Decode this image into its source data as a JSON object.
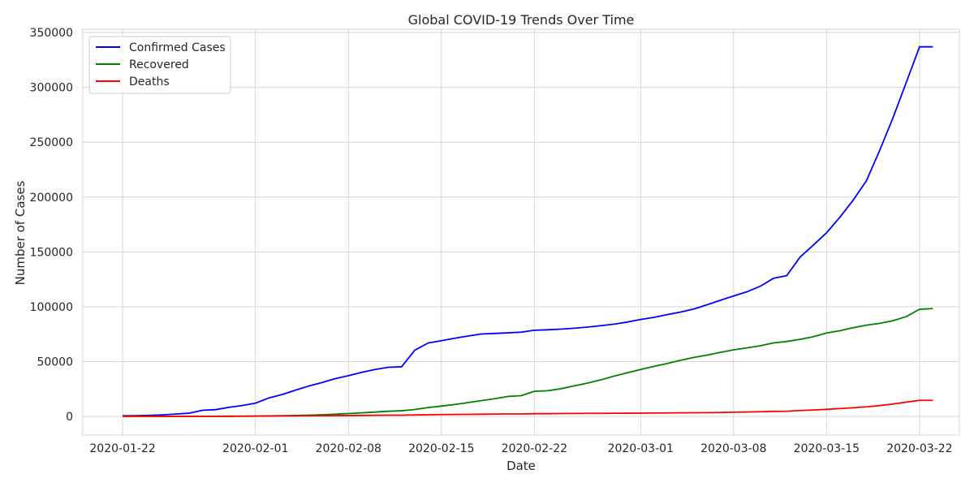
{
  "chart_data": {
    "type": "line",
    "title": "Global COVID-19 Trends Over Time",
    "xlabel": "Date",
    "ylabel": "Number of Cases",
    "x_start_date": "2020-01-22",
    "x_end_date": "2020-03-23",
    "xlim": [
      "2020-01-19",
      "2020-03-25"
    ],
    "ylim": [
      -17000,
      353000
    ],
    "x_ticks": [
      "2020-01-22",
      "2020-02-01",
      "2020-02-08",
      "2020-02-15",
      "2020-02-22",
      "2020-03-01",
      "2020-03-08",
      "2020-03-15",
      "2020-03-22"
    ],
    "y_ticks": [
      0,
      50000,
      100000,
      150000,
      200000,
      250000,
      300000,
      350000
    ],
    "grid": true,
    "legend_position": "top-left",
    "x": [
      "2020-01-22",
      "2020-01-23",
      "2020-01-24",
      "2020-01-25",
      "2020-01-26",
      "2020-01-27",
      "2020-01-28",
      "2020-01-29",
      "2020-01-30",
      "2020-01-31",
      "2020-02-01",
      "2020-02-02",
      "2020-02-03",
      "2020-02-04",
      "2020-02-05",
      "2020-02-06",
      "2020-02-07",
      "2020-02-08",
      "2020-02-09",
      "2020-02-10",
      "2020-02-11",
      "2020-02-12",
      "2020-02-13",
      "2020-02-14",
      "2020-02-15",
      "2020-02-16",
      "2020-02-17",
      "2020-02-18",
      "2020-02-19",
      "2020-02-20",
      "2020-02-21",
      "2020-02-22",
      "2020-02-23",
      "2020-02-24",
      "2020-02-25",
      "2020-02-26",
      "2020-02-27",
      "2020-02-28",
      "2020-02-29",
      "2020-03-01",
      "2020-03-02",
      "2020-03-03",
      "2020-03-04",
      "2020-03-05",
      "2020-03-06",
      "2020-03-07",
      "2020-03-08",
      "2020-03-09",
      "2020-03-10",
      "2020-03-11",
      "2020-03-12",
      "2020-03-13",
      "2020-03-14",
      "2020-03-15",
      "2020-03-16",
      "2020-03-17",
      "2020-03-18",
      "2020-03-19",
      "2020-03-20",
      "2020-03-21",
      "2020-03-22",
      "2020-03-23"
    ],
    "series": [
      {
        "name": "Confirmed Cases",
        "color": "#0000ff",
        "values": [
          555,
          654,
          941,
          1434,
          2118,
          2927,
          5578,
          6166,
          8234,
          9927,
          12038,
          16787,
          19881,
          23892,
          27635,
          30817,
          34391,
          37120,
          40150,
          42762,
          44802,
          45221,
          60368,
          66885,
          69030,
          71224,
          73258,
          75136,
          75639,
          76197,
          76819,
          78572,
          78958,
          79561,
          80406,
          81388,
          82746,
          84112,
          86011,
          88369,
          90306,
          92840,
          95120,
          97886,
          101801,
          105847,
          109821,
          113590,
          118620,
          125875,
          128343,
          145205,
          156101,
          167454,
          181574,
          197102,
          214821,
          242570,
          272208,
          304507,
          336953,
          336953
        ]
      },
      {
        "name": "Recovered",
        "color": "#008000",
        "values": [
          28,
          30,
          36,
          39,
          52,
          61,
          107,
          126,
          143,
          222,
          284,
          472,
          623,
          852,
          1124,
          1487,
          2011,
          2616,
          3244,
          3946,
          4683,
          5150,
          6295,
          8058,
          9395,
          10865,
          12583,
          14352,
          16121,
          18177,
          18890,
          22886,
          23394,
          25227,
          27905,
          30384,
          33277,
          36711,
          39782,
          42716,
          45602,
          48228,
          51170,
          53796,
          55865,
          58358,
          60694,
          62494,
          64404,
          67003,
          68324,
          70251,
          72624,
          76034,
          78088,
          80840,
          83207,
          84854,
          87256,
          91000,
          97704,
          98334
        ]
      },
      {
        "name": "Deaths",
        "color": "#ff0000",
        "values": [
          17,
          18,
          26,
          42,
          56,
          82,
          131,
          133,
          171,
          213,
          259,
          362,
          426,
          492,
          564,
          634,
          719,
          806,
          906,
          1013,
          1113,
          1118,
          1371,
          1523,
          1666,
          1770,
          1868,
          2007,
          2122,
          2247,
          2251,
          2458,
          2469,
          2629,
          2708,
          2770,
          2814,
          2872,
          2941,
          2996,
          3085,
          3160,
          3254,
          3348,
          3460,
          3558,
          3803,
          3996,
          4262,
          4615,
          4720,
          5404,
          5819,
          6440,
          7126,
          7905,
          8733,
          9867,
          11299,
          13005,
          14623,
          14623
        ]
      }
    ]
  }
}
